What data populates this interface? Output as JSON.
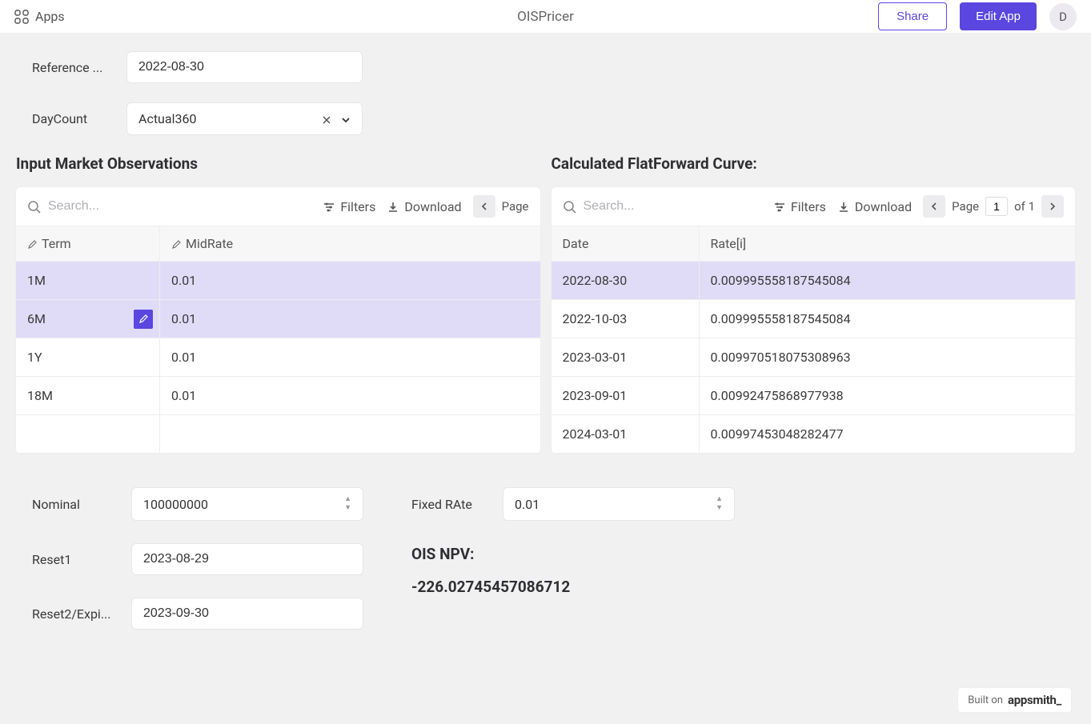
{
  "header": {
    "apps_label": "Apps",
    "title": "OISPricer",
    "share_label": "Share",
    "edit_label": "Edit App",
    "avatar_initial": "D"
  },
  "form": {
    "reference_label": "Reference ...",
    "reference_value": "2022-08-30",
    "daycount_label": "DayCount",
    "daycount_value": "Actual360"
  },
  "market_table": {
    "title": "Input Market Observations",
    "search_placeholder": "Search...",
    "filters_label": "Filters",
    "download_label": "Download",
    "page_label": "Page",
    "columns": {
      "term": "Term",
      "midrate": "MidRate"
    },
    "rows": [
      {
        "term": "1M",
        "midrate": "0.01",
        "highlight": true
      },
      {
        "term": "6M",
        "midrate": "0.01",
        "highlight": true,
        "editing": true
      },
      {
        "term": "1Y",
        "midrate": "0.01"
      },
      {
        "term": "18M",
        "midrate": "0.01"
      }
    ]
  },
  "curve_table": {
    "title": "Calculated FlatForward Curve:",
    "search_placeholder": "Search...",
    "filters_label": "Filters",
    "download_label": "Download",
    "page_label": "Page",
    "page_current": "1",
    "page_of": "of 1",
    "columns": {
      "date": "Date",
      "rate": "Rate[i]"
    },
    "rows": [
      {
        "date": "2022-08-30",
        "rate": "0.009995558187545084",
        "highlight": true
      },
      {
        "date": "2022-10-03",
        "rate": "0.009995558187545084"
      },
      {
        "date": "2023-03-01",
        "rate": "0.009970518075308963"
      },
      {
        "date": "2023-09-01",
        "rate": "0.00992475868977938"
      },
      {
        "date": "2024-03-01",
        "rate": "0.00997453048282477"
      }
    ]
  },
  "swap": {
    "nominal_label": "Nominal",
    "nominal_value": "100000000",
    "fixed_rate_label": "Fixed RAte",
    "fixed_rate_value": "0.01",
    "reset1_label": "Reset1",
    "reset1_value": "2023-08-29",
    "reset2_label": "Reset2/Expi...",
    "reset2_value": "2023-09-30"
  },
  "results": {
    "npv_title": "OIS NPV:",
    "npv_value": "-226.02745457086712"
  },
  "footer": {
    "built_on": "Built on",
    "brand": "appsmith_"
  },
  "colors": {
    "primary": "#5b46e0",
    "row_highlight": "#e0dcf8",
    "page_bg": "#f1f1f2"
  }
}
